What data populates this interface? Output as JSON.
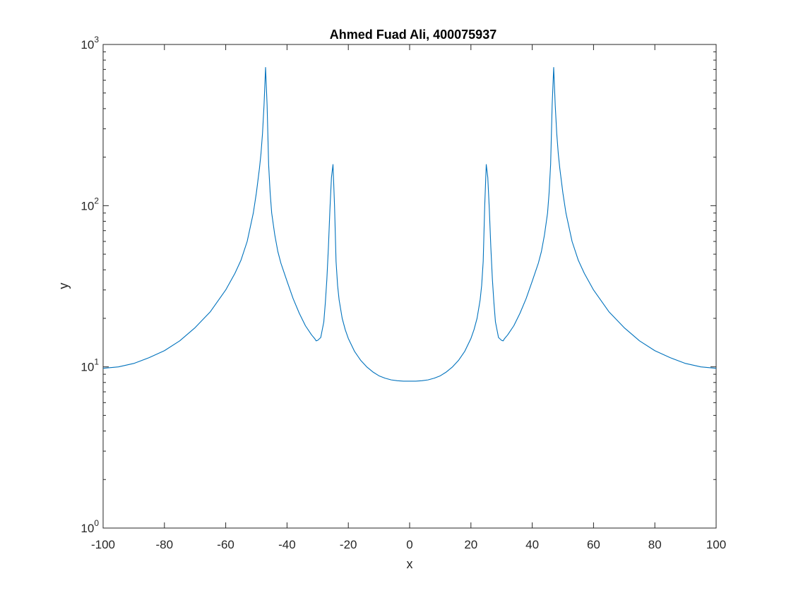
{
  "chart_data": {
    "type": "line",
    "title": "Ahmed Fuad Ali, 400075937",
    "xlabel": "x",
    "ylabel": "y",
    "xlim": [
      -100,
      100
    ],
    "ylim": [
      1,
      1000
    ],
    "yscale": "log",
    "grid": false,
    "legend": "none",
    "x_ticks": [
      -100,
      -80,
      -60,
      -40,
      -20,
      0,
      20,
      40,
      60,
      80,
      100
    ],
    "x_tick_labels": [
      "-100",
      "-80",
      "-60",
      "-40",
      "-20",
      "0",
      "20",
      "40",
      "60",
      "80",
      "100"
    ],
    "y_ticks": [
      1,
      10,
      100,
      1000
    ],
    "y_tick_labels": [
      {
        "base": "10",
        "exp": "0"
      },
      {
        "base": "10",
        "exp": "1"
      },
      {
        "base": "10",
        "exp": "2"
      },
      {
        "base": "10",
        "exp": "3"
      }
    ],
    "colors": {
      "line": "#0072bd",
      "axes": "#262626"
    },
    "series": [
      {
        "x": [
          -100,
          -95,
          -90,
          -85,
          -80,
          -75,
          -70,
          -65,
          -60,
          -57,
          -55,
          -53,
          -51,
          -50,
          -49,
          -48.5,
          -48,
          -47.5,
          -47,
          -46.5,
          -46,
          -45.5,
          -45,
          -44,
          -43,
          -42,
          -40,
          -38,
          -36,
          -34,
          -32,
          -31,
          -30.5,
          -30,
          -29,
          -28.5,
          -28,
          -27.5,
          -27,
          -26.5,
          -26,
          -25.5,
          -25,
          -24.5,
          -24,
          -23.5,
          -23,
          -22,
          -21,
          -20,
          -18,
          -16,
          -14,
          -12,
          -10,
          -8,
          -6,
          -4,
          -2,
          0,
          2,
          4,
          6,
          8,
          10,
          12,
          14,
          16,
          18,
          20,
          21,
          22,
          23,
          23.5,
          24,
          24.5,
          25,
          25.5,
          26,
          26.5,
          27,
          27.5,
          28,
          28.5,
          29,
          30,
          30.5,
          31,
          32,
          34,
          36,
          38,
          40,
          42,
          43,
          44,
          45,
          45.5,
          46,
          46.5,
          47,
          47.5,
          48,
          48.5,
          49,
          50,
          51,
          53,
          55,
          57,
          60,
          65,
          70,
          75,
          80,
          85,
          90,
          95,
          100
        ],
        "y": [
          9.8,
          10.0,
          10.5,
          11.4,
          12.6,
          14.5,
          17.5,
          22,
          30,
          38,
          46,
          60,
          90,
          120,
          170,
          210,
          280,
          420,
          720,
          420,
          180,
          120,
          90,
          66,
          52,
          44,
          34,
          26.5,
          21.5,
          18,
          15.8,
          15.0,
          14.5,
          14.6,
          15.2,
          17,
          19,
          25,
          35,
          55,
          95,
          150,
          180,
          100,
          45,
          32,
          26,
          20,
          17,
          15,
          12.5,
          11,
          10,
          9.3,
          8.8,
          8.5,
          8.3,
          8.2,
          8.15,
          8.15,
          8.15,
          8.2,
          8.3,
          8.5,
          8.8,
          9.3,
          10,
          11,
          12.5,
          15,
          17,
          20,
          26,
          32,
          45,
          100,
          180,
          150,
          95,
          55,
          35,
          25,
          19,
          17,
          15.2,
          14.6,
          14.5,
          15.0,
          15.8,
          18,
          21.5,
          26.5,
          34,
          44,
          52,
          66,
          90,
          120,
          180,
          420,
          720,
          420,
          280,
          210,
          170,
          120,
          90,
          60,
          46,
          38,
          30,
          22,
          17.5,
          14.5,
          12.6,
          11.4,
          10.5,
          10.0,
          9.8
        ]
      }
    ]
  }
}
